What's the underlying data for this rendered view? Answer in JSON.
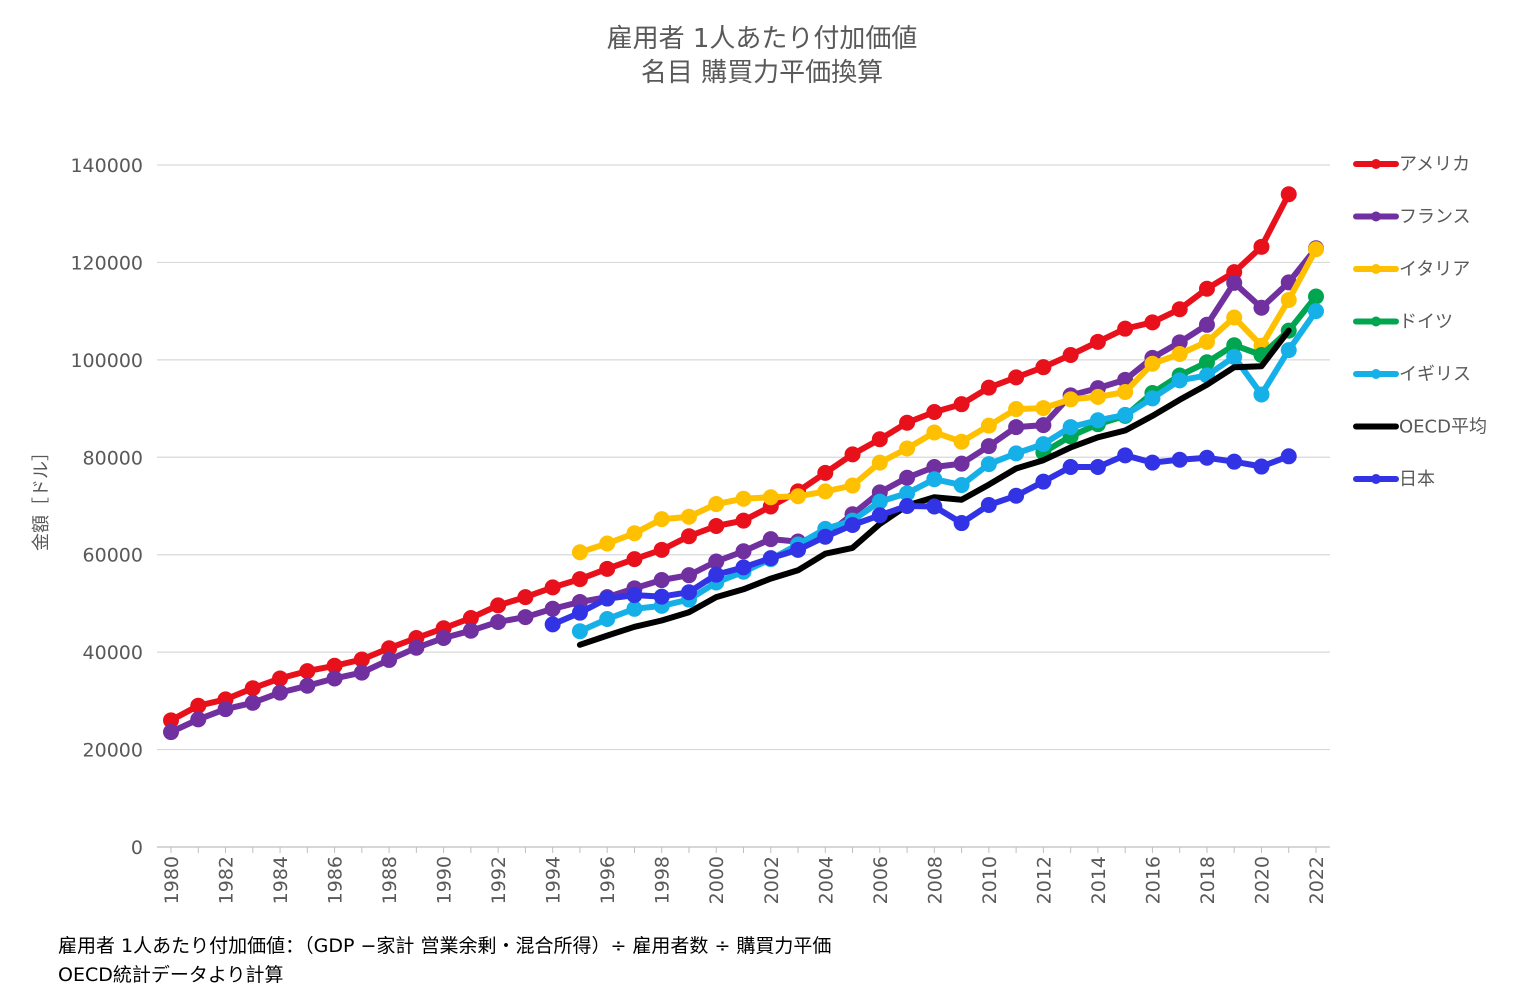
{
  "chart_data": {
    "type": "line",
    "title": [
      "雇用者 1人あたり付加価値",
      "名目 購買力平価換算"
    ],
    "ylabel": "金額［ドル］",
    "xlabel": "",
    "ylim": [
      0,
      140000
    ],
    "yticks": [
      0,
      20000,
      40000,
      60000,
      80000,
      100000,
      120000,
      140000
    ],
    "xlim": [
      1980,
      2022
    ],
    "xticks": [
      "1980",
      "1982",
      "1984",
      "1986",
      "1988",
      "1990",
      "1992",
      "1994",
      "1996",
      "1998",
      "2000",
      "2002",
      "2004",
      "2006",
      "2008",
      "2010",
      "2012",
      "2014",
      "2016",
      "2018",
      "2020",
      "2022"
    ],
    "grid": "horizontal",
    "legend_position": "right",
    "series": [
      {
        "name": "アメリカ",
        "color": "#e8101b",
        "markers": true,
        "start": 1980,
        "values": [
          26000,
          29000,
          30300,
          32600,
          34600,
          36100,
          37200,
          38500,
          40800,
          42900,
          44900,
          47000,
          49600,
          51300,
          53300,
          55000,
          57100,
          59100,
          61000,
          63800,
          65900,
          67000,
          69900,
          73000,
          76800,
          80600,
          83700,
          87100,
          89300,
          90900,
          94300,
          96400,
          98500,
          101000,
          103700,
          106400,
          107700,
          110400,
          114600,
          118000,
          123200,
          134000
        ]
      },
      {
        "name": "フランス",
        "color": "#7030a0",
        "markers": true,
        "start": 1980,
        "values": [
          23600,
          26200,
          28300,
          29600,
          31700,
          33100,
          34600,
          35800,
          38400,
          40900,
          42900,
          44400,
          46200,
          47200,
          48900,
          50300,
          51300,
          53100,
          54800,
          55800,
          58600,
          60700,
          63200,
          62700,
          63900,
          68300,
          72800,
          75800,
          78000,
          78700,
          82300,
          86200,
          86600,
          92700,
          94200,
          95900,
          100400,
          103600,
          107200,
          115800,
          110700,
          115900,
          122900
        ]
      },
      {
        "name": "イタリア",
        "color": "#ffc000",
        "markers": true,
        "start": 1995,
        "values": [
          60500,
          62300,
          64400,
          67300,
          67800,
          70400,
          71500,
          71800,
          72000,
          73000,
          74200,
          78900,
          81800,
          85100,
          83200,
          86500,
          89900,
          90100,
          91900,
          92400,
          93400,
          99200,
          101200,
          103700,
          108700,
          102900,
          112300,
          122700
        ]
      },
      {
        "name": "ドイツ",
        "color": "#00a550",
        "markers": true,
        "start": 2012,
        "values": [
          81000,
          84300,
          86800,
          88500,
          93200,
          96800,
          99500,
          103000,
          101000,
          106000,
          113000
        ]
      },
      {
        "name": "イギリス",
        "color": "#16b0e8",
        "markers": true,
        "start": 1995,
        "values": [
          44300,
          46800,
          48900,
          49500,
          50800,
          54300,
          56500,
          59100,
          62100,
          65300,
          67000,
          70900,
          72600,
          75500,
          74300,
          78600,
          80800,
          82700,
          86200,
          87600,
          88700,
          92100,
          95800,
          96800,
          100600,
          92900,
          102000,
          110000
        ]
      },
      {
        "name": "OECD平均",
        "color": "#000000",
        "markers": false,
        "start": 1995,
        "values": [
          41500,
          43400,
          45200,
          46500,
          48200,
          51300,
          52900,
          55100,
          56800,
          60200,
          61400,
          66300,
          70100,
          71800,
          71300,
          74400,
          77700,
          79400,
          82000,
          84100,
          85500,
          88500,
          91800,
          94900,
          98500,
          98700,
          106000
        ]
      },
      {
        "name": "日本",
        "color": "#3333e6",
        "markers": true,
        "start": 1994,
        "values": [
          45700,
          48100,
          51000,
          51700,
          51400,
          52300,
          55900,
          57400,
          59300,
          61000,
          63700,
          66100,
          68100,
          70000,
          69900,
          66500,
          70200,
          72100,
          75000,
          78000,
          78000,
          80400,
          78900,
          79500,
          79900,
          79100,
          78100,
          80200
        ]
      }
    ]
  },
  "footnotes": [
    "雇用者 1人あたり付加価値：（GDP −家計 営業余剰・混合所得）÷ 雇用者数 ÷ 購買力平価",
    "OECD統計データより計算"
  ]
}
